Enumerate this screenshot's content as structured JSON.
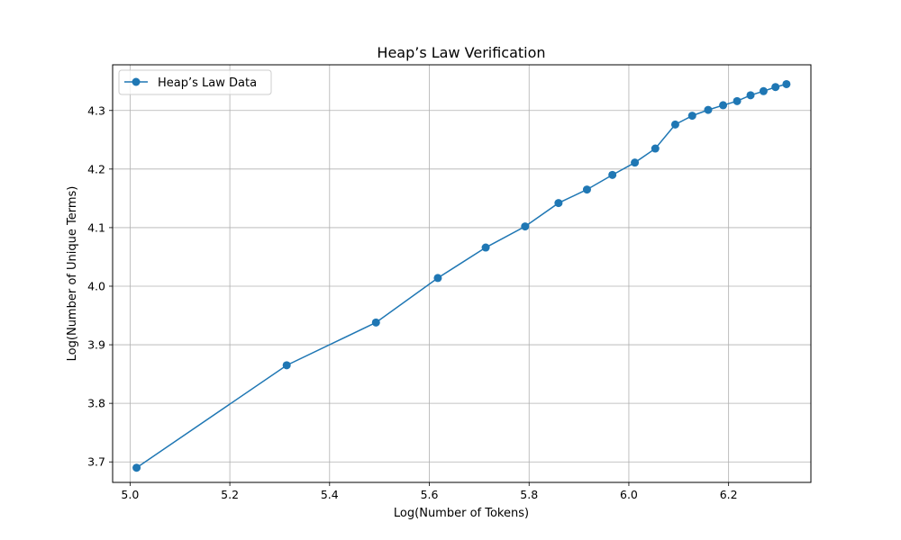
{
  "chart_data": {
    "type": "line",
    "title": "Heap’s Law Verification",
    "xlabel": "Log(Number of Tokens)",
    "ylabel": "Log(Number of Unique Terms)",
    "xlim": [
      4.965,
      6.365
    ],
    "ylim": [
      3.665,
      4.378
    ],
    "xticks": [
      5.0,
      5.2,
      5.4,
      5.6,
      5.8,
      6.0,
      6.2
    ],
    "xtick_labels": [
      "5.0",
      "5.2",
      "5.4",
      "5.6",
      "5.8",
      "6.0",
      "6.2"
    ],
    "yticks": [
      3.7,
      3.8,
      3.9,
      4.0,
      4.1,
      4.2,
      4.3
    ],
    "ytick_labels": [
      "3.7",
      "3.8",
      "3.9",
      "4.0",
      "4.1",
      "4.2",
      "4.3"
    ],
    "grid": true,
    "legend_position": "top-left",
    "color": "#1f77b4",
    "series": [
      {
        "name": "Heap’s Law Data",
        "marker": "circle",
        "x": [
          5.013,
          5.314,
          5.493,
          5.617,
          5.713,
          5.792,
          5.859,
          5.916,
          5.967,
          6.012,
          6.053,
          6.093,
          6.127,
          6.159,
          6.189,
          6.217,
          6.244,
          6.27,
          6.294,
          6.316
        ],
        "y": [
          3.69,
          3.865,
          3.938,
          4.014,
          4.066,
          4.102,
          4.142,
          4.165,
          4.19,
          4.211,
          4.235,
          4.276,
          4.291,
          4.301,
          4.309,
          4.316,
          4.326,
          4.333,
          4.34,
          4.345
        ]
      }
    ]
  }
}
